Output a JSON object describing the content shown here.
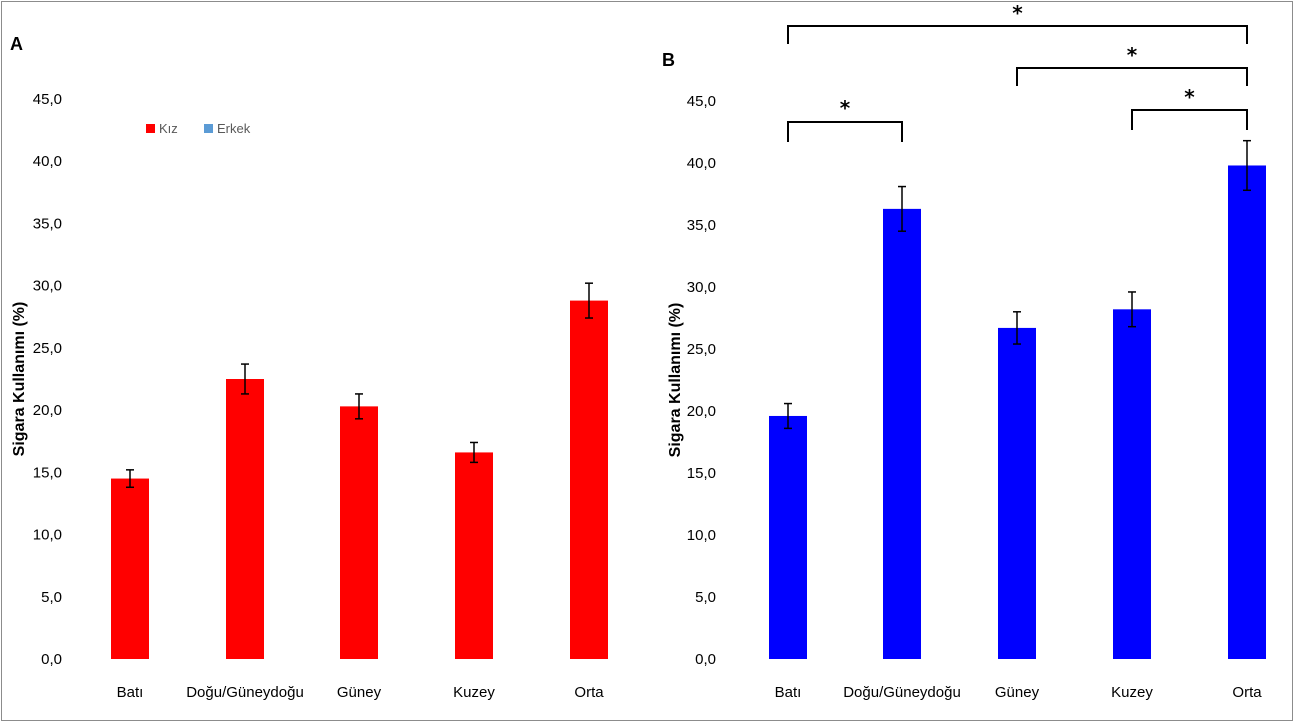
{
  "chart_data": [
    {
      "panel": "A",
      "type": "bar",
      "categories": [
        "Batı",
        "Doğu/Güneydoğu",
        "Güney",
        "Kuzey",
        "Orta"
      ],
      "ylabel": "Sigara Kullanımı (%)",
      "ylim": [
        0,
        45
      ],
      "yticks": [
        "0,0",
        "5,0",
        "10,0",
        "15,0",
        "20,0",
        "25,0",
        "30,0",
        "35,0",
        "40,0",
        "45,0"
      ],
      "grid": false,
      "legend": {
        "placement": "top-left",
        "entries": [
          {
            "label": "Kız",
            "color": "#ff0000"
          },
          {
            "label": "Erkek",
            "color": "#5b9bd5"
          }
        ]
      },
      "series": [
        {
          "name": "Kız",
          "color": "#ff0000",
          "values": [
            14.5,
            22.5,
            20.3,
            16.6,
            28.8
          ],
          "error": [
            0.7,
            1.2,
            1.0,
            0.8,
            1.4
          ]
        }
      ]
    },
    {
      "panel": "B",
      "type": "bar",
      "categories": [
        "Batı",
        "Doğu/Güneydoğu",
        "Güney",
        "Kuzey",
        "Orta"
      ],
      "ylabel": "Sigara Kullanımı (%)",
      "ylim": [
        0,
        45
      ],
      "yticks": [
        "0,0",
        "5,0",
        "10,0",
        "15,0",
        "20,0",
        "25,0",
        "30,0",
        "35,0",
        "40,0",
        "45,0"
      ],
      "grid": false,
      "series": [
        {
          "name": "Erkek",
          "color": "#0000ff",
          "values": [
            19.6,
            36.3,
            26.7,
            28.2,
            39.8
          ],
          "error": [
            1.0,
            1.8,
            1.3,
            1.4,
            2.0
          ]
        }
      ],
      "significance": [
        {
          "from": "Batı",
          "to": "Orta",
          "label": "*"
        },
        {
          "from": "Güney",
          "to": "Orta",
          "label": "*"
        },
        {
          "from": "Batı",
          "to": "Doğu/Güneydoğu",
          "label": "*"
        },
        {
          "from": "Kuzey",
          "to": "Orta",
          "label": "*"
        }
      ]
    }
  ]
}
